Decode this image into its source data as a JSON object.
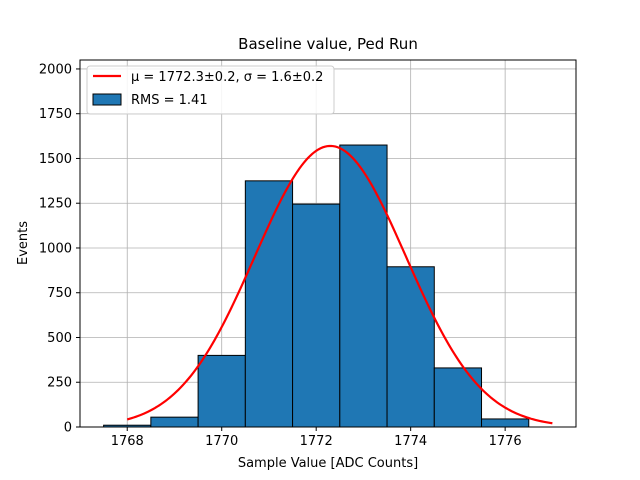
{
  "chart_data": {
    "type": "bar",
    "title": "Baseline value, Ped Run",
    "xlabel": "Sample Value [ADC Counts]",
    "ylabel": "Events",
    "xlim": [
      1767,
      1777.5
    ],
    "ylim": [
      0,
      2050
    ],
    "grid": true,
    "xticks": [
      1768,
      1770,
      1772,
      1774,
      1776
    ],
    "yticks": [
      0,
      250,
      500,
      750,
      1000,
      1250,
      1500,
      1750,
      2000
    ],
    "bins": [
      {
        "left": 1767.5,
        "right": 1768.5,
        "value": 10
      },
      {
        "left": 1768.5,
        "right": 1769.5,
        "value": 55
      },
      {
        "left": 1769.5,
        "right": 1770.5,
        "value": 400
      },
      {
        "left": 1770.5,
        "right": 1771.5,
        "value": 1375
      },
      {
        "left": 1771.5,
        "right": 1772.5,
        "value": 1245
      },
      {
        "left": 1772.5,
        "right": 1773.5,
        "value": 1575
      },
      {
        "left": 1773.5,
        "right": 1774.5,
        "value": 895
      },
      {
        "left": 1774.5,
        "right": 1775.5,
        "value": 330
      },
      {
        "left": 1775.5,
        "right": 1776.5,
        "value": 45
      }
    ],
    "fit": {
      "type": "gaussian",
      "amplitude": 1570,
      "mu": 1772.3,
      "sigma": 1.6,
      "x_range": [
        1768,
        1777
      ],
      "color": "#ff0000"
    },
    "bar_color": "#1f77b4",
    "legend": {
      "placement": "top-left",
      "fit_label_prefix": "μ = 1772.3±0.2, ",
      "fit_label_suffix": "σ = 1.6±0.2",
      "hist_label": "RMS = 1.41"
    }
  }
}
